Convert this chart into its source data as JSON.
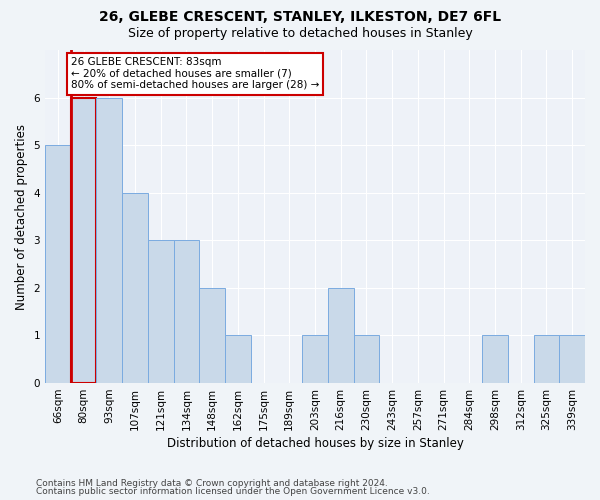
{
  "title": "26, GLEBE CRESCENT, STANLEY, ILKESTON, DE7 6FL",
  "subtitle": "Size of property relative to detached houses in Stanley",
  "xlabel": "Distribution of detached houses by size in Stanley",
  "ylabel": "Number of detached properties",
  "categories": [
    "66sqm",
    "80sqm",
    "93sqm",
    "107sqm",
    "121sqm",
    "134sqm",
    "148sqm",
    "162sqm",
    "175sqm",
    "189sqm",
    "203sqm",
    "216sqm",
    "230sqm",
    "243sqm",
    "257sqm",
    "271sqm",
    "284sqm",
    "298sqm",
    "312sqm",
    "325sqm",
    "339sqm"
  ],
  "values": [
    5,
    6,
    6,
    4,
    3,
    3,
    2,
    1,
    0,
    0,
    1,
    2,
    1,
    0,
    0,
    0,
    0,
    1,
    0,
    1,
    1
  ],
  "bar_color": "#c9d9e9",
  "bar_edge_color": "#7aabe0",
  "highlight_bar_index": 1,
  "highlight_bar_edge_color": "#cc0000",
  "annotation_box_text": "26 GLEBE CRESCENT: 83sqm\n← 20% of detached houses are smaller (7)\n80% of semi-detached houses are larger (28) →",
  "annotation_box_color": "#ffffff",
  "annotation_box_edge_color": "#cc0000",
  "ylim": [
    0,
    7
  ],
  "yticks": [
    0,
    1,
    2,
    3,
    4,
    5,
    6,
    7
  ],
  "footer_line1": "Contains HM Land Registry data © Crown copyright and database right 2024.",
  "footer_line2": "Contains public sector information licensed under the Open Government Licence v3.0.",
  "background_color": "#f0f4f8",
  "plot_background_color": "#eef2f8",
  "grid_color": "#ffffff",
  "title_fontsize": 10,
  "subtitle_fontsize": 9,
  "ylabel_fontsize": 8.5,
  "xlabel_fontsize": 8.5,
  "tick_fontsize": 7.5,
  "annotation_fontsize": 7.5,
  "footer_fontsize": 6.5
}
